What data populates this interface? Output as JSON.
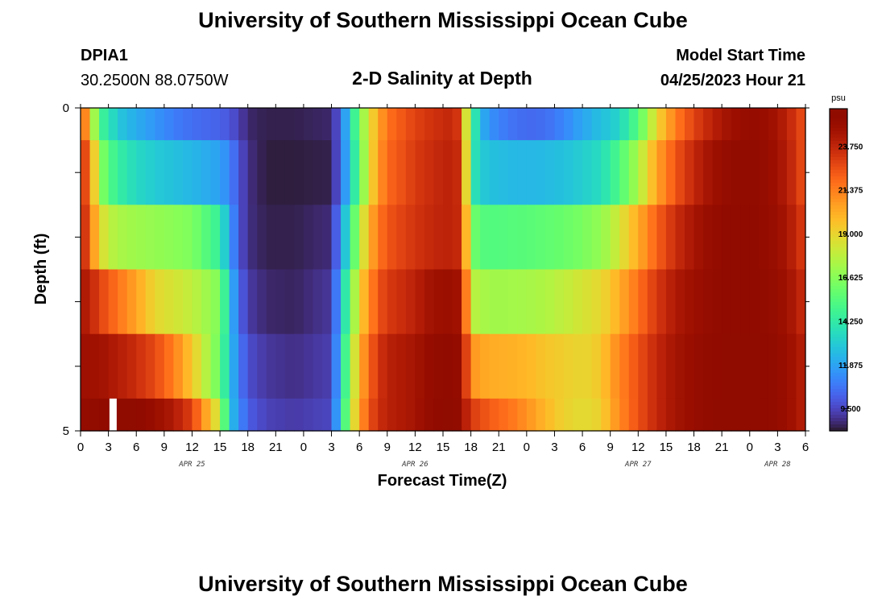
{
  "page": {
    "title": "University of Southern Mississippi Ocean Cube",
    "footer_title": "University of Southern Mississippi Ocean Cube",
    "station": "DPIA1",
    "coords": "30.2500N  88.0750W",
    "subtitle": "2-D Salinity at Depth",
    "model_label": "Model Start Time",
    "model_time": "04/25/2023 Hour 21"
  },
  "colorbar": {
    "unit": "psu",
    "ticks": [
      "23.750",
      "21.375",
      "19.000",
      "16.625",
      "14.250",
      "11.875",
      "9.500"
    ]
  },
  "chart_data": {
    "type": "heatmap",
    "title": "2-D Salinity at Depth",
    "xlabel": "Forecast Time(Z)",
    "ylabel": "Depth (ft)",
    "x_tick_labels": [
      "0",
      "3",
      "6",
      "9",
      "12",
      "15",
      "18",
      "21",
      "0",
      "3",
      "6",
      "9",
      "12",
      "15",
      "18",
      "21",
      "0",
      "3",
      "6",
      "9",
      "12",
      "15",
      "18",
      "21",
      "0",
      "3",
      "6"
    ],
    "day_labels": [
      {
        "label": "APR 25",
        "hour": 12
      },
      {
        "label": "APR 26",
        "hour": 36
      },
      {
        "label": "APR 27",
        "hour": 60
      },
      {
        "label": "APR 28",
        "hour": 75
      }
    ],
    "y_tick_labels": [
      "0",
      "5"
    ],
    "ylim": [
      0,
      5
    ],
    "x_hours": [
      0,
      78
    ],
    "depth_layer_bounds": [
      0,
      0.5,
      1.5,
      2.5,
      3.5,
      4.5,
      5.0
    ],
    "color_range": [
      8.3,
      25.8
    ],
    "colorscale": "turbo",
    "x_keys": [
      0,
      1,
      2,
      3,
      4,
      6,
      8,
      10,
      12,
      15,
      16,
      17,
      18,
      20,
      23,
      27,
      28,
      29,
      30,
      31,
      32,
      33,
      36,
      38,
      40,
      41,
      41.5,
      42,
      43,
      44,
      46,
      48,
      50,
      52,
      54,
      56,
      57,
      58,
      60,
      62,
      64,
      66,
      68,
      70,
      72,
      74,
      76,
      78
    ],
    "layers": [
      [
        23.0,
        19.5,
        15.0,
        14.2,
        13.0,
        12.2,
        11.6,
        11.0,
        10.6,
        10.3,
        10.0,
        9.5,
        8.8,
        8.6,
        8.6,
        8.8,
        10.4,
        13.5,
        16.2,
        18.6,
        20.3,
        21.8,
        23.0,
        23.5,
        23.8,
        23.0,
        18.5,
        15.5,
        12.5,
        11.5,
        10.8,
        10.5,
        10.6,
        11.2,
        12.0,
        12.8,
        13.0,
        13.5,
        15.5,
        19.0,
        21.5,
        23.0,
        24.0,
        24.8,
        25.2,
        25.0,
        24.0,
        22.5
      ],
      [
        24.0,
        21.5,
        17.0,
        15.5,
        14.5,
        13.6,
        13.1,
        12.8,
        12.5,
        11.9,
        11.2,
        10.0,
        9.0,
        8.5,
        8.5,
        8.6,
        10.5,
        13.0,
        15.8,
        18.5,
        20.7,
        22.0,
        23.2,
        23.7,
        24.0,
        23.4,
        19.0,
        14.5,
        13.2,
        12.8,
        12.6,
        12.5,
        12.6,
        12.8,
        13.2,
        13.7,
        14.5,
        15.3,
        17.5,
        20.5,
        22.5,
        23.8,
        24.8,
        25.3,
        25.4,
        25.1,
        24.2,
        22.5
      ],
      [
        24.5,
        22.0,
        19.0,
        18.0,
        17.5,
        17.2,
        17.0,
        16.8,
        16.5,
        14.5,
        12.0,
        10.0,
        9.0,
        8.6,
        8.6,
        8.9,
        11.5,
        14.5,
        17.5,
        20.0,
        21.6,
        22.5,
        23.4,
        23.8,
        24.0,
        23.5,
        20.0,
        16.5,
        15.5,
        15.4,
        15.5,
        15.6,
        15.8,
        16.0,
        16.4,
        17.0,
        17.6,
        18.5,
        20.3,
        22.2,
        23.6,
        24.5,
        25.2,
        25.5,
        25.5,
        25.2,
        24.5,
        23.0
      ],
      [
        24.5,
        24.0,
        23.0,
        22.4,
        21.8,
        20.5,
        19.0,
        18.5,
        18.0,
        16.5,
        13.0,
        10.5,
        9.3,
        8.8,
        8.7,
        9.2,
        12.5,
        16.0,
        19.0,
        21.0,
        22.5,
        23.2,
        24.0,
        24.8,
        25.0,
        24.5,
        21.5,
        18.0,
        17.5,
        17.3,
        17.3,
        17.4,
        17.6,
        18.0,
        18.5,
        19.0,
        19.5,
        20.3,
        21.8,
        23.3,
        24.3,
        24.9,
        25.3,
        25.5,
        25.5,
        25.3,
        24.8,
        23.5
      ],
      [
        24.8,
        24.8,
        24.7,
        24.5,
        24.2,
        23.6,
        22.8,
        21.5,
        19.5,
        16.0,
        13.0,
        11.0,
        9.8,
        9.2,
        9.0,
        9.4,
        13.0,
        17.0,
        20.0,
        22.0,
        23.3,
        24.0,
        24.6,
        25.3,
        25.5,
        25.0,
        23.0,
        21.0,
        20.5,
        20.3,
        20.2,
        20.0,
        19.6,
        19.3,
        19.0,
        19.5,
        20.5,
        21.3,
        22.6,
        23.8,
        24.6,
        25.1,
        25.4,
        25.6,
        25.6,
        25.4,
        25.0,
        24.0
      ],
      [
        25.2,
        25.3,
        25.4,
        25.5,
        25.6,
        25.6,
        25.0,
        24.3,
        23.0,
        18.0,
        13.0,
        11.5,
        10.2,
        9.5,
        9.3,
        9.6,
        13.5,
        17.5,
        20.5,
        22.5,
        23.5,
        24.0,
        24.6,
        25.4,
        25.6,
        25.2,
        24.0,
        23.2,
        22.8,
        22.3,
        21.8,
        21.0,
        20.0,
        19.2,
        18.8,
        19.2,
        20.3,
        21.2,
        22.6,
        23.8,
        24.6,
        25.1,
        25.5,
        25.6,
        25.6,
        25.4,
        25.0,
        24.0
      ]
    ],
    "missing_cells": [
      {
        "layer": 5,
        "hour": 3.5
      }
    ]
  },
  "colors": {
    "frame": "#000000",
    "background": "#ffffff",
    "missing": "#ffffff"
  }
}
